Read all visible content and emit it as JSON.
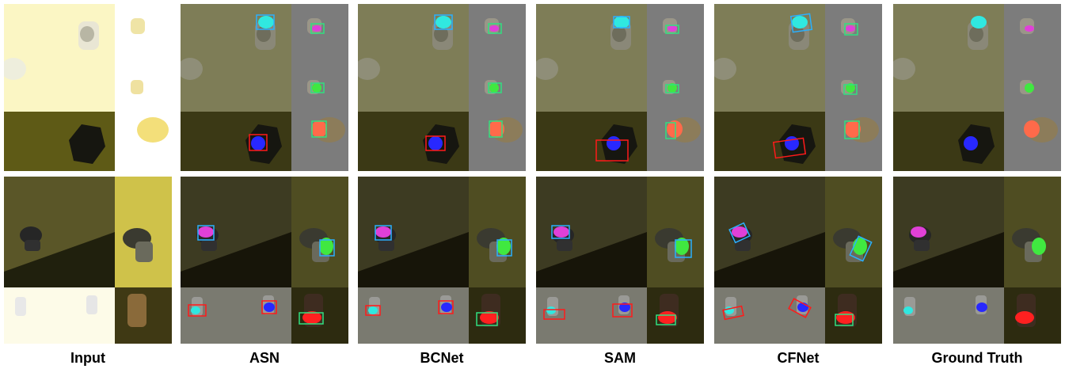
{
  "captions": [
    "Input",
    "ASN",
    "BCNet",
    "SAM",
    "CFNet",
    "Ground Truth"
  ],
  "columns": [
    {
      "key": "input",
      "overlays": false,
      "boxes": false
    },
    {
      "key": "asn",
      "overlays": true,
      "boxes": true
    },
    {
      "key": "bcnet",
      "overlays": true,
      "boxes": true
    },
    {
      "key": "sam",
      "overlays": true,
      "boxes": true
    },
    {
      "key": "cfnet",
      "overlays": true,
      "boxes": true
    },
    {
      "key": "ground-truth",
      "overlays": true,
      "boxes": false
    }
  ],
  "colors": {
    "cyan": "#30e8e0",
    "magenta": "#e040d8",
    "green": "#40e840",
    "orange": "#ff6a4a",
    "blue": "#2828ff",
    "red": "#ff2020",
    "box_blue": "#2ab0ff",
    "box_red": "#ff1a1a",
    "box_green": "#30e080"
  }
}
